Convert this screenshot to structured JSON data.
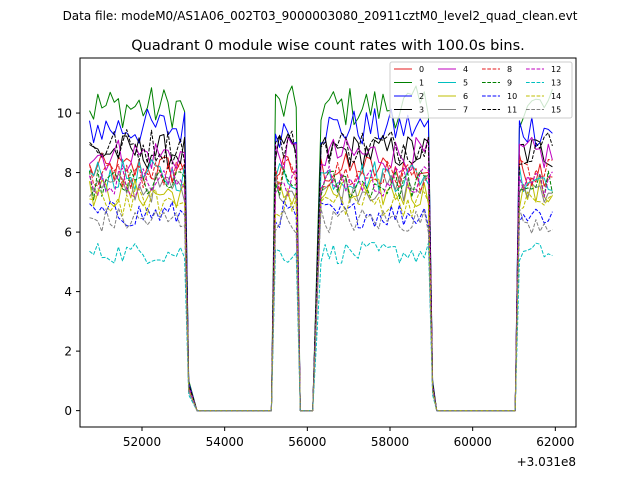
{
  "chart_data": {
    "type": "line",
    "suptitle": "Data file: modeM0/AS1A06_002T03_9000003080_20911cztM0_level2_quad_clean.evt",
    "title": "Quadrant 0 module wise count rates with 100.0s bins.",
    "xlabel": "",
    "ylabel": "",
    "x_offset_label": "+3.031e8",
    "xlim": [
      50500,
      62500
    ],
    "ylim": [
      -0.55,
      11.85
    ],
    "x_ticks": [
      52000,
      54000,
      56000,
      58000,
      60000,
      62000
    ],
    "x_tick_labels": [
      "52000",
      "54000",
      "56000",
      "58000",
      "60000",
      "62000"
    ],
    "y_ticks": [
      0,
      2,
      4,
      6,
      8,
      10
    ],
    "y_tick_labels": [
      "0",
      "2",
      "4",
      "6",
      "8",
      "10"
    ],
    "legend_position": "upper-right",
    "legend_ncol": 4,
    "segments": [
      {
        "start": 50730,
        "end": 53030,
        "kind": "on"
      },
      {
        "start": 53130,
        "end": 53330,
        "kind": "edge"
      },
      {
        "start": 53330,
        "end": 55130,
        "kind": "zero"
      },
      {
        "start": 55230,
        "end": 55730,
        "kind": "on"
      },
      {
        "start": 55830,
        "end": 56130,
        "kind": "dip"
      },
      {
        "start": 56330,
        "end": 58930,
        "kind": "on"
      },
      {
        "start": 59030,
        "end": 59130,
        "kind": "edge"
      },
      {
        "start": 59130,
        "end": 61030,
        "kind": "zero"
      },
      {
        "start": 61130,
        "end": 61930,
        "kind": "on"
      }
    ],
    "series": [
      {
        "name": "0",
        "base": 8.1,
        "color": "#e41a1c",
        "dash": "solid"
      },
      {
        "name": "1",
        "base": 10.2,
        "color": "#008000",
        "dash": "solid"
      },
      {
        "name": "2",
        "base": 9.5,
        "color": "#0000ff",
        "dash": "solid"
      },
      {
        "name": "3",
        "base": 8.7,
        "color": "#000000",
        "dash": "solid"
      },
      {
        "name": "4",
        "base": 8.6,
        "color": "#bf00bf",
        "dash": "solid"
      },
      {
        "name": "5",
        "base": 7.9,
        "color": "#00bfbf",
        "dash": "solid"
      },
      {
        "name": "6",
        "base": 7.3,
        "color": "#bfbf00",
        "dash": "solid"
      },
      {
        "name": "7",
        "base": 7.5,
        "color": "#808080",
        "dash": "solid"
      },
      {
        "name": "8",
        "base": 7.9,
        "color": "#e41a1c",
        "dash": "dashed"
      },
      {
        "name": "9",
        "base": 7.6,
        "color": "#008000",
        "dash": "dashed"
      },
      {
        "name": "10",
        "base": 6.6,
        "color": "#0000ff",
        "dash": "dashed"
      },
      {
        "name": "11",
        "base": 8.9,
        "color": "#000000",
        "dash": "dashed"
      },
      {
        "name": "12",
        "base": 7.7,
        "color": "#bf00bf",
        "dash": "dashed"
      },
      {
        "name": "13",
        "base": 5.3,
        "color": "#00bfbf",
        "dash": "dashed"
      },
      {
        "name": "14",
        "base": 7.0,
        "color": "#bfbf00",
        "dash": "dashed"
      },
      {
        "name": "15",
        "base": 6.4,
        "color": "#808080",
        "dash": "dashed"
      }
    ]
  }
}
